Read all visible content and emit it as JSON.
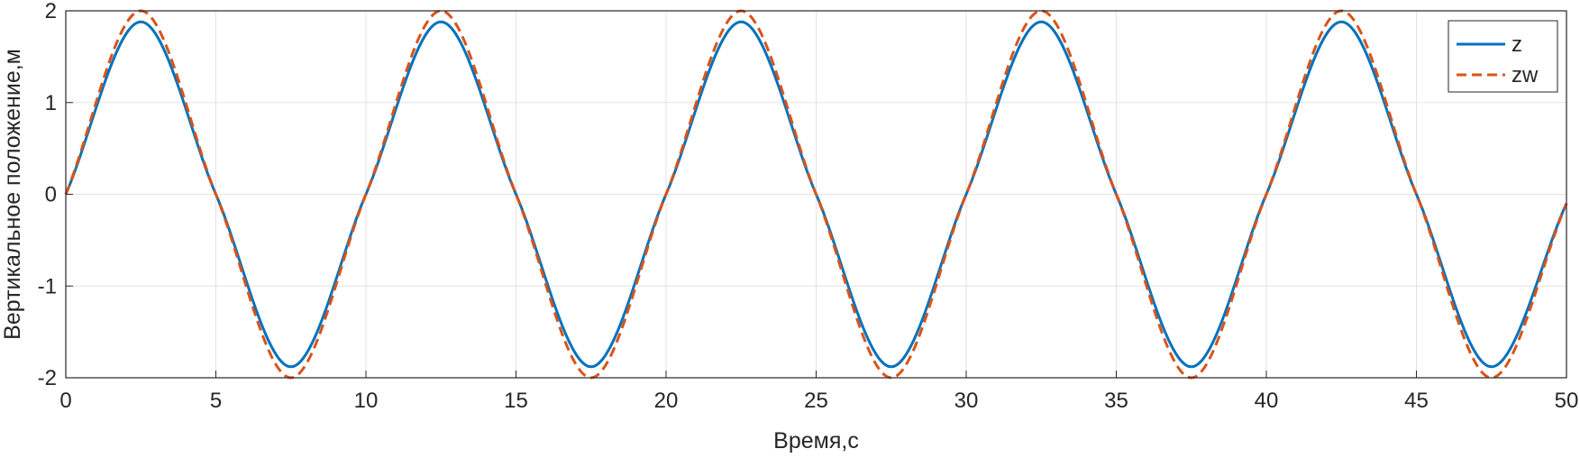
{
  "chart_data": {
    "type": "line",
    "xlabel": "Время,с",
    "ylabel": "Вертикальное положение,м",
    "xlim": [
      0,
      50
    ],
    "ylim": [
      -2,
      2
    ],
    "xticks": [
      0,
      5,
      10,
      15,
      20,
      25,
      30,
      35,
      40,
      45,
      50
    ],
    "yticks": [
      -2,
      -1,
      0,
      1,
      2
    ],
    "grid": true,
    "legend_position": "top-right",
    "series": [
      {
        "name": "z",
        "color": "#0072BD",
        "style": "solid",
        "x": [
          0,
          2.5,
          5,
          7.5,
          10,
          12.5,
          15,
          17.5,
          20,
          22.5,
          25,
          27.5,
          30,
          32.5,
          35,
          37.5,
          40,
          42.5,
          45,
          47.5,
          50
        ],
        "y": [
          0,
          1.88,
          0,
          -1.88,
          0,
          1.88,
          0,
          -1.88,
          0,
          1.88,
          0,
          -1.88,
          0,
          1.88,
          0,
          -1.88,
          0,
          1.88,
          0,
          -1.88,
          -0.1
        ]
      },
      {
        "name": "zw",
        "color": "#D95319",
        "style": "dashed",
        "x": [
          0,
          2.5,
          5,
          7.5,
          10,
          12.5,
          15,
          17.5,
          20,
          22.5,
          25,
          27.5,
          30,
          32.5,
          35,
          37.5,
          40,
          42.5,
          45,
          47.5,
          50
        ],
        "y": [
          0,
          2.0,
          0,
          -2.0,
          0,
          2.0,
          0,
          -2.0,
          0,
          2.0,
          0,
          -2.0,
          0,
          2.0,
          0,
          -2.0,
          0,
          2.0,
          0,
          -2.0,
          -0.1
        ]
      }
    ]
  }
}
